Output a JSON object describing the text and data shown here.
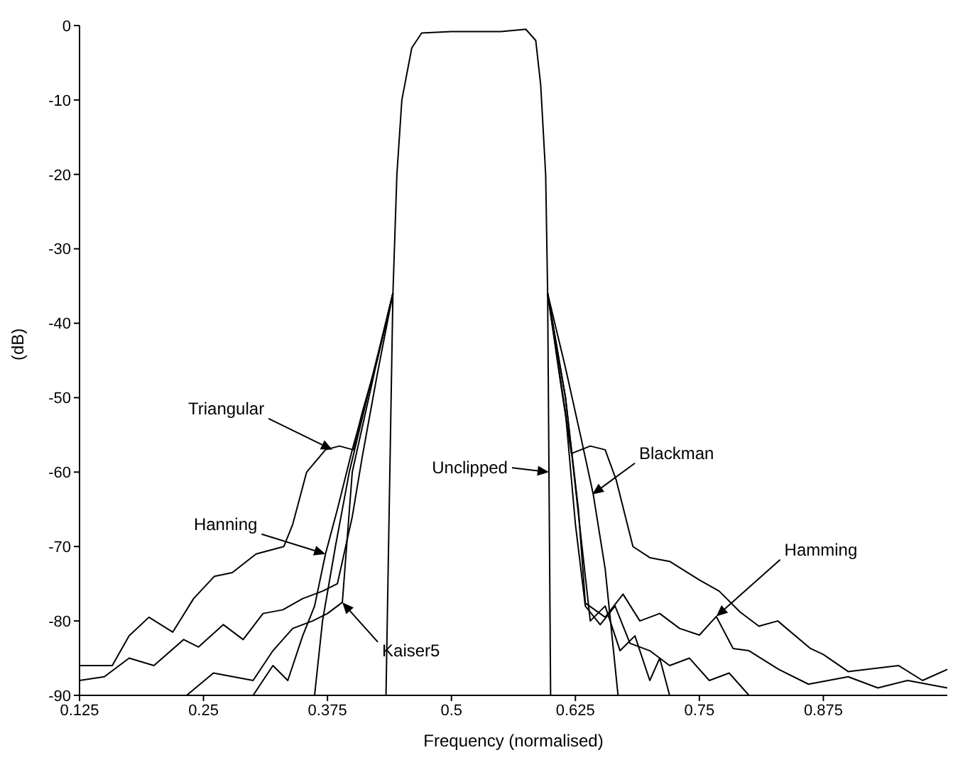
{
  "chart_data": {
    "type": "line",
    "xlabel": "Frequency (normalised)",
    "ylabel": "(dB)",
    "xlim": [
      0.125,
      1.0
    ],
    "ylim": [
      -90,
      0
    ],
    "xticks": [
      0.125,
      0.25,
      0.375,
      0.5,
      0.625,
      0.75,
      0.875
    ],
    "yticks": [
      -90,
      -80,
      -70,
      -60,
      -50,
      -40,
      -30,
      -20,
      -10,
      0
    ],
    "grid": false,
    "legend": false,
    "marker": "none",
    "line_style": "solid",
    "series": [
      {
        "color": "#000000",
        "x": [
          0.434,
          0.441,
          0.445,
          0.45,
          0.46,
          0.47,
          0.5,
          0.55,
          0.575,
          0.585,
          0.59,
          0.595,
          0.597,
          0.6
        ],
        "values": [
          -90,
          -36,
          -20,
          -10,
          -3,
          -1,
          -0.8,
          -0.8,
          -0.5,
          -2,
          -8,
          -20,
          -36,
          -90
        ]
      },
      {
        "color": "#000000",
        "x": [
          0.125,
          0.158,
          0.175,
          0.195,
          0.219,
          0.24,
          0.261,
          0.279,
          0.303,
          0.331,
          0.34,
          0.354,
          0.373,
          0.387,
          0.401,
          0.41,
          0.425,
          0.441
        ],
        "values": [
          -86,
          -86,
          -82,
          -79.5,
          -81.5,
          -77,
          -74,
          -73.5,
          -71,
          -70,
          -67,
          -60,
          -57,
          -56.5,
          -57,
          -52,
          -45,
          -36
        ]
      },
      {
        "color": "#000000",
        "x": [
          0.597,
          0.61,
          0.621,
          0.64,
          0.655,
          0.666,
          0.683,
          0.7,
          0.72,
          0.75,
          0.77,
          0.791,
          0.81,
          0.829,
          0.862,
          0.875,
          0.9,
          0.951,
          0.975,
          1.0
        ],
        "values": [
          -36,
          -48,
          -57.5,
          -56.5,
          -57,
          -61,
          -70,
          -71.5,
          -72,
          -74.5,
          -76,
          -78.8,
          -80.7,
          -80,
          -83.7,
          -84.5,
          -86.8,
          -86,
          -88,
          -86.5
        ]
      },
      {
        "color": "#000000",
        "x": [
          0.125,
          0.15,
          0.175,
          0.2,
          0.23,
          0.245,
          0.27,
          0.29,
          0.31,
          0.33,
          0.35,
          0.37,
          0.385,
          0.39,
          0.4,
          0.41,
          0.425,
          0.441
        ],
        "values": [
          -88,
          -87.5,
          -85,
          -86,
          -82.5,
          -83.5,
          -80.5,
          -82.5,
          -79,
          -78.5,
          -77,
          -76,
          -75,
          -72,
          -66,
          -58,
          -47,
          -36
        ]
      },
      {
        "color": "#000000",
        "x": [
          0.597,
          0.615,
          0.628,
          0.635,
          0.655,
          0.673,
          0.69,
          0.71,
          0.73,
          0.75,
          0.767,
          0.784,
          0.8,
          0.83,
          0.86,
          0.9,
          0.93,
          0.96,
          1.0
        ],
        "values": [
          -36,
          -50,
          -65,
          -77.6,
          -79.5,
          -76.4,
          -80,
          -79,
          -81,
          -81.9,
          -79.4,
          -83.7,
          -84,
          -86.5,
          -88.5,
          -87.5,
          -89,
          -88,
          -89
        ]
      },
      {
        "color": "#000000",
        "x": [
          0.3,
          0.32,
          0.335,
          0.35,
          0.362,
          0.373,
          0.385,
          0.4,
          0.425,
          0.441
        ],
        "values": [
          -90,
          -86,
          -88,
          -82,
          -78,
          -71,
          -65,
          -57,
          -45,
          -36
        ]
      },
      {
        "color": "#000000",
        "x": [
          0.597,
          0.615,
          0.63,
          0.64,
          0.655,
          0.67,
          0.685,
          0.7,
          0.71,
          0.72
        ],
        "values": [
          -36,
          -50,
          -68,
          -80,
          -78,
          -84,
          -82,
          -88,
          -85,
          -90
        ]
      },
      {
        "color": "#000000",
        "x": [
          0.233,
          0.26,
          0.3,
          0.32,
          0.34,
          0.36,
          0.375,
          0.39,
          0.4,
          0.425,
          0.441
        ],
        "values": [
          -90,
          -87,
          -88,
          -84,
          -81,
          -80,
          -79,
          -77.5,
          -60,
          -45,
          -36
        ]
      },
      {
        "color": "#000000",
        "x": [
          0.597,
          0.615,
          0.625,
          0.635,
          0.65,
          0.665,
          0.68,
          0.7,
          0.72,
          0.74,
          0.76,
          0.78,
          0.8
        ],
        "values": [
          -36,
          -52,
          -67,
          -78,
          -80.5,
          -78,
          -83,
          -84,
          -86,
          -85,
          -88,
          -87,
          -90
        ]
      },
      {
        "color": "#000000",
        "x": [
          0.362,
          0.37,
          0.383,
          0.397,
          0.415,
          0.441
        ],
        "values": [
          -90,
          -80,
          -70,
          -60,
          -50,
          -36
        ]
      },
      {
        "color": "#000000",
        "x": [
          0.597,
          0.615,
          0.63,
          0.643,
          0.655,
          0.668
        ],
        "values": [
          -36,
          -46,
          -55,
          -63,
          -73,
          -90
        ]
      }
    ],
    "annotations": [
      {
        "text": "Triangular",
        "x": 0.38,
        "y": -57
      },
      {
        "text": "Hanning",
        "x": 0.373,
        "y": -71
      },
      {
        "text": "Kaiser5",
        "x": 0.39,
        "y": -77.5
      },
      {
        "text": "Unclipped",
        "x": 0.5983,
        "y": -60
      },
      {
        "text": "Blackman",
        "x": 0.642,
        "y": -63
      },
      {
        "text": "Hamming",
        "x": 0.767,
        "y": -79.4
      }
    ]
  }
}
